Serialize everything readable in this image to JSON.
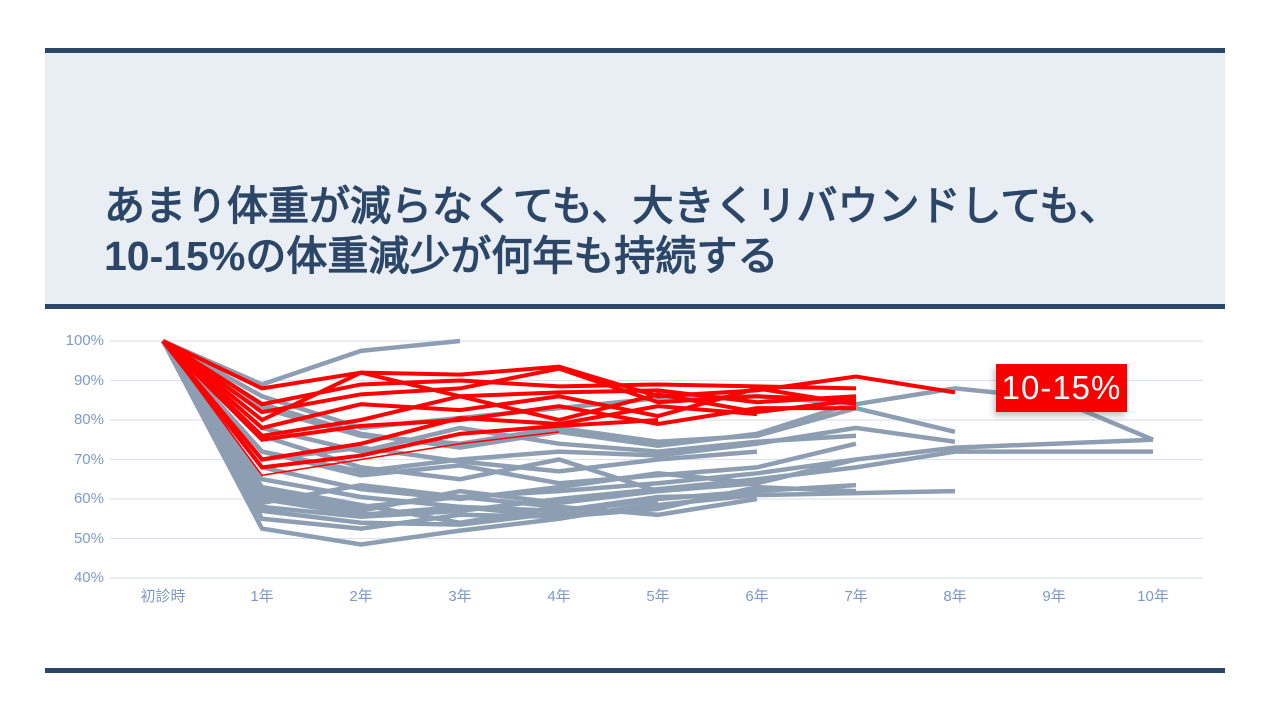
{
  "title": {
    "line1": "あまり体重が減らなくても、大きくリバウンドしても、",
    "line2": "10-15%の体重減少が何年も持続する"
  },
  "colors": {
    "navy": "#2B4667",
    "title_text": "#2B4667",
    "header_bg": "#E9EDF4",
    "red_line": "#FF0000",
    "gray_line": "#8E9EB2",
    "grid": "#DCE3EF",
    "axis_label": "#7D9AC7",
    "annotation_bg": "#F80000",
    "annotation_text": "#FFFFFF"
  },
  "annotation": {
    "label": "10-15%"
  },
  "chart_data": {
    "type": "line",
    "title": "",
    "xlabel": "",
    "ylabel": "",
    "x_categories": [
      "初診時",
      "1年",
      "2年",
      "3年",
      "4年",
      "5年",
      "6年",
      "7年",
      "8年",
      "9年",
      "10年"
    ],
    "y_ticks": [
      100,
      90,
      80,
      70,
      60,
      50,
      40
    ],
    "y_tick_labels": [
      "100%",
      "90%",
      "80%",
      "70%",
      "60%",
      "50%",
      "40%"
    ],
    "ylim": [
      40,
      100
    ],
    "grid": true,
    "legend": false,
    "unit": "percent_of_initial_body_weight",
    "series": [
      {
        "name": "patient-gray-1",
        "color": "#8E9EB2",
        "stroke_width": 4.5,
        "values": [
          100,
          89,
          97.5,
          100
        ]
      },
      {
        "name": "patient-gray-2",
        "color": "#8E9EB2",
        "stroke_width": 4.5,
        "values": [
          100,
          86,
          78,
          80.5,
          83,
          85.5,
          86,
          84,
          88,
          85.5,
          75
        ]
      },
      {
        "name": "patient-gray-3",
        "color": "#8E9EB2",
        "stroke_width": 4.5,
        "values": [
          100,
          62,
          58,
          60.5,
          62,
          64,
          66.5,
          70,
          73,
          74,
          75
        ]
      },
      {
        "name": "patient-gray-4",
        "color": "#8E9EB2",
        "stroke_width": 4.5,
        "values": [
          100,
          58,
          55.5,
          57,
          60,
          62.5,
          65,
          68,
          72,
          72,
          72
        ]
      },
      {
        "name": "patient-gray-5",
        "color": "#8E9EB2",
        "stroke_width": 4.5,
        "values": [
          100,
          83,
          76,
          74,
          78,
          74.5,
          76,
          83,
          77
        ]
      },
      {
        "name": "patient-gray-6",
        "color": "#8E9EB2",
        "stroke_width": 4.5,
        "values": [
          100,
          60,
          56,
          58,
          57,
          60.5,
          61,
          61.5,
          62
        ]
      },
      {
        "name": "patient-gray-7",
        "color": "#8E9EB2",
        "stroke_width": 4.5,
        "values": [
          100,
          72,
          67,
          70,
          72,
          71,
          74,
          78,
          74.5
        ]
      },
      {
        "name": "patient-gray-8",
        "color": "#8E9EB2",
        "stroke_width": 4.5,
        "values": [
          100,
          52.5,
          48.5,
          52,
          55,
          59
        ]
      },
      {
        "name": "patient-gray-9",
        "color": "#8E9EB2",
        "stroke_width": 4.5,
        "values": [
          100,
          55,
          52.5,
          56,
          55.5,
          58.5,
          61
        ]
      },
      {
        "name": "patient-gray-10",
        "color": "#8E9EB2",
        "stroke_width": 4.5,
        "values": [
          100,
          65,
          60.5,
          58,
          55.5,
          57.5,
          63,
          62
        ]
      },
      {
        "name": "patient-gray-11",
        "color": "#8E9EB2",
        "stroke_width": 4.5,
        "values": [
          100,
          57,
          54,
          53.5,
          56.5,
          60,
          62,
          63.5
        ]
      },
      {
        "name": "patient-gray-12",
        "color": "#8E9EB2",
        "stroke_width": 4.5,
        "values": [
          100,
          84,
          76.5,
          73,
          77,
          73.5,
          76.5,
          84.5
        ]
      },
      {
        "name": "patient-gray-13",
        "color": "#8E9EB2",
        "stroke_width": 4.5,
        "values": [
          100,
          72,
          66,
          68.5,
          64,
          66,
          68,
          74
        ]
      },
      {
        "name": "patient-gray-14",
        "color": "#8E9EB2",
        "stroke_width": 4.5,
        "values": [
          100,
          68,
          62.5,
          60,
          63,
          66.5,
          64,
          70
        ]
      },
      {
        "name": "patient-gray-15",
        "color": "#8E9EB2",
        "stroke_width": 4.5,
        "values": [
          100,
          78,
          72,
          78,
          74,
          72,
          74.5,
          76
        ]
      },
      {
        "name": "patient-gray-16",
        "color": "#8E9EB2",
        "stroke_width": 4.5,
        "values": [
          100,
          63,
          58.5,
          54,
          58,
          56,
          60
        ]
      },
      {
        "name": "patient-gray-17",
        "color": "#8E9EB2",
        "stroke_width": 4.5,
        "values": [
          100,
          70,
          73,
          69.5,
          67,
          70,
          72
        ]
      },
      {
        "name": "patient-gray-18",
        "color": "#8E9EB2",
        "stroke_width": 4.5,
        "values": [
          100,
          61,
          57,
          62,
          59,
          62,
          64
        ]
      },
      {
        "name": "patient-gray-19",
        "color": "#8E9EB2",
        "stroke_width": 4.5,
        "values": [
          100,
          76,
          68,
          65,
          70,
          62
        ]
      },
      {
        "name": "patient-gray-20",
        "color": "#8E9EB2",
        "stroke_width": 4.5,
        "values": [
          100,
          59,
          63.5,
          60.5,
          58
        ]
      },
      {
        "name": "patient-red-1",
        "color": "#FF0000",
        "stroke_width": 4,
        "values": [
          100,
          88,
          92,
          91.5,
          93.5,
          86,
          87.5,
          91,
          87
        ]
      },
      {
        "name": "patient-red-2",
        "color": "#FF0000",
        "stroke_width": 4,
        "values": [
          100,
          84,
          89,
          90,
          88.5,
          89,
          88.5,
          88
        ]
      },
      {
        "name": "patient-red-3",
        "color": "#FF0000",
        "stroke_width": 4,
        "values": [
          100,
          82,
          86.5,
          88,
          93,
          84.5,
          86,
          85
        ]
      },
      {
        "name": "patient-red-4",
        "color": "#FF0000",
        "stroke_width": 4,
        "values": [
          100,
          80,
          92,
          86,
          87,
          87.5,
          84.5,
          86
        ]
      },
      {
        "name": "patient-red-5",
        "color": "#FF0000",
        "stroke_width": 4,
        "values": [
          100,
          78,
          84,
          82.5,
          86,
          81,
          88,
          84
        ]
      },
      {
        "name": "patient-red-6",
        "color": "#FF0000",
        "stroke_width": 4,
        "values": [
          100,
          76,
          80,
          86,
          80,
          86.5,
          82,
          85
        ]
      },
      {
        "name": "patient-red-7",
        "color": "#FF0000",
        "stroke_width": 4,
        "values": [
          100,
          75,
          78.5,
          80,
          83.5,
          79,
          83,
          83
        ]
      },
      {
        "name": "patient-red-8",
        "color": "#FF0000",
        "stroke_width": 4,
        "values": [
          100,
          70,
          74,
          80.5,
          79,
          83.5,
          81.5
        ]
      },
      {
        "name": "patient-red-9",
        "color": "#FF0000",
        "stroke_width": 4,
        "values": [
          100,
          68,
          71,
          76.5,
          78.5,
          80
        ]
      },
      {
        "name": "patient-red-10",
        "color": "#FF0000",
        "stroke_width": 1.5,
        "values": [
          100,
          66,
          70,
          74,
          77
        ]
      }
    ]
  }
}
